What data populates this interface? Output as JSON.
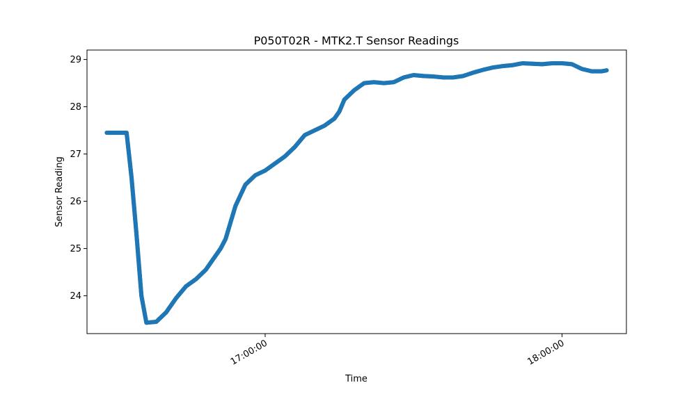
{
  "chart_data": {
    "type": "scatter",
    "title": "P050T02R - MTK2.T Sensor Readings",
    "xlabel": "Time",
    "ylabel": "Sensor Reading",
    "x_unit": "time-of-day",
    "xlim": [
      "16:24:00",
      "18:13:00"
    ],
    "ylim": [
      23.2,
      29.2
    ],
    "x_ticks": [
      "17:00:00",
      "18:00:00"
    ],
    "y_ticks": [
      24,
      25,
      26,
      27,
      28,
      29
    ],
    "grid": false,
    "legend": "none",
    "marker_color": "#1f77b4",
    "series": [
      {
        "x": [
          "16:28:00",
          "16:31:00",
          "16:32:00",
          "16:33:00",
          "16:34:00",
          "16:35:00",
          "16:36:00",
          "16:38:00",
          "16:40:00",
          "16:42:00",
          "16:44:00",
          "16:46:00",
          "16:48:00",
          "16:49:00",
          "16:50:00",
          "16:51:00",
          "16:52:00",
          "16:54:00",
          "16:56:00",
          "16:58:00",
          "17:00:00",
          "17:02:00",
          "17:04:00",
          "17:06:00",
          "17:08:00",
          "17:10:00",
          "17:12:00",
          "17:14:00",
          "17:15:00",
          "17:16:00",
          "17:18:00",
          "17:20:00",
          "17:22:00",
          "17:24:00",
          "17:26:00",
          "17:28:00",
          "17:30:00",
          "17:32:00",
          "17:34:00",
          "17:36:00",
          "17:38:00",
          "17:40:00",
          "17:42:00",
          "17:44:00",
          "17:46:00",
          "17:48:00",
          "17:50:00",
          "17:52:00",
          "17:54:00",
          "17:56:00",
          "17:58:00",
          "18:00:00",
          "18:02:00",
          "18:04:00",
          "18:06:00",
          "18:07:00",
          "18:08:00",
          "18:09:00"
        ],
        "y": [
          27.45,
          27.45,
          27.45,
          26.5,
          25.3,
          24.0,
          23.43,
          23.45,
          23.65,
          23.95,
          24.2,
          24.35,
          24.55,
          24.7,
          24.85,
          25.0,
          25.2,
          25.9,
          26.35,
          26.55,
          26.65,
          26.8,
          26.95,
          27.15,
          27.4,
          27.5,
          27.6,
          27.75,
          27.9,
          28.15,
          28.35,
          28.5,
          28.52,
          28.5,
          28.52,
          28.62,
          28.67,
          28.65,
          28.64,
          28.62,
          28.62,
          28.65,
          28.72,
          28.78,
          28.83,
          28.86,
          28.88,
          28.92,
          28.91,
          28.9,
          28.92,
          28.92,
          28.9,
          28.8,
          28.75,
          28.75,
          28.75,
          28.77
        ]
      }
    ]
  }
}
